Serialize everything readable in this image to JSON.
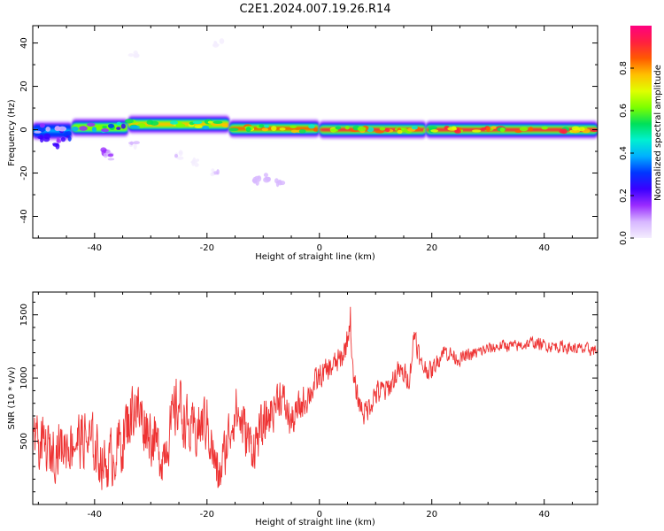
{
  "title": "C2E1.2024.007.19.26.R14",
  "colors": {
    "snr_line": "#ee3333",
    "background": "#ffffff",
    "colormap": [
      "#f4eefe",
      "#d7b6ff",
      "#9a2cff",
      "#3a00ff",
      "#0036ff",
      "#00b0ff",
      "#00f0d0",
      "#00e05a",
      "#7cff00",
      "#e0ff00",
      "#ffc000",
      "#ff5a00",
      "#ff2040",
      "#ff0080"
    ]
  },
  "chart_data": [
    {
      "id": "spectrogram",
      "type": "heatmap",
      "xlabel": "Height of straight line (km)",
      "ylabel": "Frequency (Hz)",
      "xlim": [
        -51,
        49.5
      ],
      "ylim": [
        -50,
        48
      ],
      "xticks": [
        -40,
        -20,
        0,
        20,
        40
      ],
      "yticks": [
        -40,
        -20,
        0,
        20,
        40
      ],
      "x_tick_labels": [
        "-40",
        "-20",
        "0",
        "20",
        "40"
      ],
      "y_tick_labels": [
        "-40",
        "-20",
        "0",
        "20",
        "40"
      ],
      "colorbar": {
        "label": "Normalized spectral amplitude",
        "range": [
          0,
          1
        ],
        "ticks": [
          0.0,
          0.2,
          0.4,
          0.6,
          0.8
        ],
        "tick_labels": [
          "0.0",
          "0.2",
          "0.4",
          "0.6",
          "0.8"
        ]
      },
      "ridge": {
        "frequency_hz": 0,
        "segments": [
          {
            "x": [
              -51,
              -44
            ],
            "freq": [
              -3,
              2
            ],
            "amplitude": 0.35
          },
          {
            "x": [
              -44,
              -34
            ],
            "freq": [
              -1,
              3
            ],
            "amplitude": 0.6
          },
          {
            "x": [
              -34,
              -16
            ],
            "freq": [
              1,
              4
            ],
            "amplitude": 0.8
          },
          {
            "x": [
              -16,
              0
            ],
            "freq": [
              -1,
              2
            ],
            "amplitude": 0.85
          },
          {
            "x": [
              0,
              19
            ],
            "freq": [
              -1,
              1
            ],
            "amplitude": 0.9
          },
          {
            "x": [
              19,
              49.5
            ],
            "freq": [
              -1,
              1
            ],
            "amplitude": 0.95
          }
        ]
      },
      "scattered_energy": [
        {
          "x": -49,
          "freq": -4,
          "amplitude": 0.3
        },
        {
          "x": -47,
          "freq": -6,
          "amplitude": 0.25
        },
        {
          "x": -45,
          "freq": -3,
          "amplitude": 0.3
        },
        {
          "x": -38,
          "freq": -10,
          "amplitude": 0.15
        },
        {
          "x": -37.5,
          "freq": -12,
          "amplitude": 0.12
        },
        {
          "x": -33,
          "freq": -7,
          "amplitude": 0.05
        },
        {
          "x": -25,
          "freq": -12,
          "amplitude": 0.04
        },
        {
          "x": -22,
          "freq": -15,
          "amplitude": 0.04
        },
        {
          "x": -11,
          "freq": -23,
          "amplitude": 0.08
        },
        {
          "x": -9,
          "freq": -22,
          "amplitude": 0.08
        },
        {
          "x": -7,
          "freq": -24,
          "amplitude": 0.08
        },
        {
          "x": -18.5,
          "freq": -19,
          "amplitude": 0.05
        },
        {
          "x": -33,
          "freq": 34,
          "amplitude": 0.02
        },
        {
          "x": -18,
          "freq": 40,
          "amplitude": 0.02
        }
      ]
    },
    {
      "id": "snr",
      "type": "line",
      "xlabel": "Height of straight line (km)",
      "ylabel": "SNR (10 * v/v)",
      "xlim": [
        -51,
        49.5
      ],
      "ylim": [
        0,
        1680
      ],
      "xticks": [
        -40,
        -20,
        0,
        20,
        40
      ],
      "yticks": [
        500,
        1000,
        1500
      ],
      "x_tick_labels": [
        "-40",
        "-20",
        "0",
        "20",
        "40"
      ],
      "y_tick_labels": [
        "500",
        "1000",
        "1500"
      ],
      "series": [
        {
          "x": [
            -51,
            -48,
            -45,
            -42,
            -40,
            -38,
            -35,
            -33,
            -30,
            -28,
            -25,
            -23,
            -20,
            -18,
            -15,
            -12,
            -10,
            -7,
            -5,
            -3,
            0,
            2,
            4,
            5,
            5.5,
            6,
            7,
            8,
            10,
            12,
            14,
            16,
            17,
            18,
            20,
            22,
            25,
            28,
            30,
            33,
            35,
            38,
            40,
            43,
            46,
            49.5
          ],
          "y": [
            500,
            420,
            480,
            520,
            450,
            300,
            520,
            800,
            560,
            380,
            820,
            540,
            660,
            180,
            760,
            450,
            600,
            880,
            640,
            800,
            1000,
            1080,
            1150,
            1300,
            1500,
            980,
            820,
            720,
            880,
            900,
            1050,
            1000,
            1380,
            1100,
            1050,
            1220,
            1150,
            1200,
            1230,
            1260,
            1250,
            1280,
            1260,
            1250,
            1230,
            1220
          ],
          "amp": [
            280,
            300,
            280,
            320,
            320,
            280,
            360,
            360,
            320,
            300,
            340,
            300,
            320,
            260,
            300,
            280,
            260,
            220,
            200,
            180,
            150,
            140,
            140,
            140,
            160,
            150,
            120,
            140,
            150,
            140,
            130,
            120,
            140,
            110,
            100,
            90,
            80,
            70,
            70,
            65,
            65,
            65,
            65,
            65,
            65,
            65
          ]
        }
      ]
    }
  ]
}
